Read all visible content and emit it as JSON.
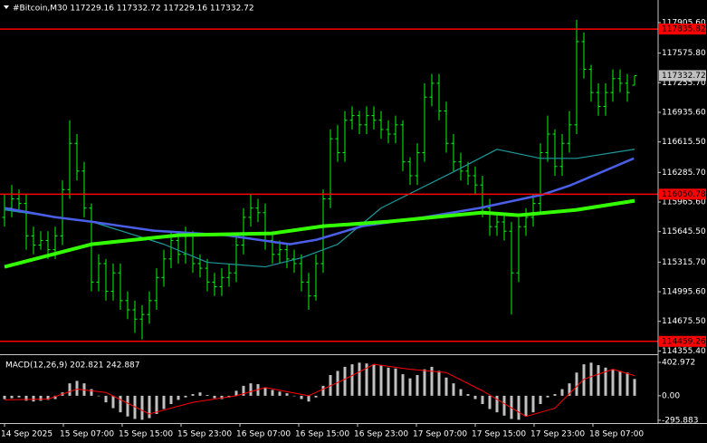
{
  "chart_data": [
    {
      "type": "ohlc",
      "title": "#Bitcoin,M30  117229.16 117332.72 117229.16 117332.72",
      "color": "#00ff00",
      "open": [
        115800,
        115900,
        116000,
        115950,
        115600,
        115500,
        115550,
        115450,
        115600,
        116100,
        116600,
        116300,
        115900,
        115100,
        115300,
        115000,
        115200,
        114900,
        114800,
        114700,
        114750,
        114900,
        115150,
        115350,
        115550,
        115400,
        115600,
        115300,
        115250,
        115100,
        115050,
        115150,
        115200,
        115500,
        115800,
        115900,
        115850,
        115550,
        115400,
        115450,
        115350,
        115300,
        115100,
        114950,
        115300,
        116000,
        116650,
        116500,
        116850,
        116900,
        116800,
        116900,
        116850,
        116750,
        116700,
        116800,
        116400,
        116250,
        116500,
        117100,
        117250,
        116950,
        116600,
        116400,
        116300,
        116250,
        116150,
        115900,
        115700,
        115750,
        115650,
        115200,
        115700,
        115800,
        115950,
        116500,
        116700,
        116350,
        116600,
        116800,
        117700,
        117400,
        117150,
        117000,
        117150,
        117300,
        117250,
        117229.16
      ],
      "high": [
        116050,
        116150,
        116100,
        116050,
        115700,
        115650,
        115650,
        115700,
        116200,
        116850,
        116700,
        116400,
        115950,
        115400,
        115350,
        115300,
        115300,
        115000,
        114900,
        114850,
        115000,
        115250,
        115450,
        115650,
        115650,
        115700,
        115650,
        115400,
        115350,
        115200,
        115250,
        115300,
        115600,
        115900,
        116050,
        116000,
        115950,
        115650,
        115550,
        115500,
        115450,
        115400,
        115200,
        115400,
        116100,
        116750,
        116800,
        116950,
        117000,
        116950,
        117000,
        117000,
        116950,
        116850,
        116900,
        116850,
        116450,
        116600,
        117250,
        117350,
        117350,
        117050,
        116700,
        116500,
        116400,
        116350,
        116250,
        116000,
        115850,
        115850,
        115750,
        115800,
        115900,
        116050,
        116600,
        116900,
        116750,
        116700,
        116950,
        117935,
        117800,
        117450,
        117250,
        117250,
        117400,
        117400,
        117350,
        117332.72
      ],
      "low": [
        115700,
        115800,
        115850,
        115450,
        115400,
        115450,
        115350,
        115350,
        115500,
        116000,
        116200,
        115800,
        115000,
        115000,
        114900,
        114900,
        114800,
        114700,
        114550,
        114480,
        114650,
        114800,
        115050,
        115250,
        115300,
        115300,
        115200,
        115150,
        115000,
        114950,
        114950,
        115050,
        115100,
        115400,
        115700,
        115750,
        115450,
        115300,
        115300,
        115250,
        115200,
        115000,
        114800,
        114900,
        115200,
        115900,
        116400,
        116400,
        116750,
        116700,
        116700,
        116750,
        116650,
        116600,
        116600,
        116300,
        116150,
        116150,
        116400,
        117000,
        116850,
        116500,
        116300,
        116200,
        116150,
        116050,
        115800,
        115600,
        115600,
        115550,
        114750,
        115100,
        115600,
        115700,
        115850,
        116400,
        116250,
        116250,
        116500,
        116700,
        117300,
        117050,
        116900,
        116900,
        117050,
        117150,
        117050,
        117229.16
      ],
      "close": [
        115900,
        116000,
        115950,
        115600,
        115500,
        115550,
        115450,
        115600,
        116100,
        116600,
        116300,
        115900,
        115100,
        115300,
        115000,
        115200,
        114900,
        114800,
        114700,
        114750,
        114900,
        115150,
        115350,
        115550,
        115400,
        115600,
        115300,
        115250,
        115100,
        115050,
        115150,
        115200,
        115500,
        115800,
        115900,
        115850,
        115550,
        115400,
        115450,
        115350,
        115300,
        115100,
        114950,
        115300,
        116000,
        116650,
        116500,
        116850,
        116900,
        116800,
        116900,
        116850,
        116750,
        116700,
        116800,
        116400,
        116250,
        116500,
        117100,
        117250,
        116950,
        116600,
        116400,
        116300,
        116250,
        116150,
        115900,
        115700,
        115750,
        115650,
        115200,
        115700,
        115800,
        115950,
        116500,
        116700,
        116350,
        116600,
        116800,
        117700,
        117400,
        117150,
        117000,
        117150,
        117300,
        117250,
        117150,
        117332.72
      ],
      "xlim": [
        -0.625,
        90.25
      ],
      "ylim": [
        114330,
        118150
      ],
      "yticks": [
        {
          "value": 117905.6,
          "label": "117905.60"
        },
        {
          "value": 117575.8,
          "label": "117575.80"
        },
        {
          "value": 117255.7,
          "label": "117255.70"
        },
        {
          "value": 116935.6,
          "label": "116935.60"
        },
        {
          "value": 116615.5,
          "label": "116615.50"
        },
        {
          "value": 116285.7,
          "label": "116285.70"
        },
        {
          "value": 115965.6,
          "label": "115965.60"
        },
        {
          "value": 115645.5,
          "label": "115645.50"
        },
        {
          "value": 115315.7,
          "label": "115315.70"
        },
        {
          "value": 114995.6,
          "label": "114995.60"
        },
        {
          "value": 114675.5,
          "label": "114675.50"
        },
        {
          "value": 114355.4,
          "label": "114355.40"
        }
      ],
      "grid": true,
      "levels": [
        117835.82,
        116050.78,
        114459.26
      ],
      "level_color": "#ff0000",
      "last_price": 117332.72,
      "series": [
        {
          "color": "#1e9a9a",
          "line_width": 1.2,
          "x": [
            0,
            7,
            12,
            22,
            28,
            36,
            41,
            46,
            52,
            62,
            68,
            74,
            79,
            87
          ],
          "values": [
            115881,
            115803,
            115754,
            115509,
            115314,
            115265,
            115363,
            115509,
            115901,
            116292,
            116536,
            116438,
            116438,
            116536
          ]
        },
        {
          "color": "#4a5fe8",
          "line_width": 2.5,
          "x": [
            0,
            6.9,
            11.9,
            20.6,
            30.6,
            39.4,
            43.1,
            49.4,
            58.1,
            65.6,
            74.4,
            78.1,
            86.9
          ],
          "values": [
            115901,
            115803,
            115754,
            115656,
            115607,
            115509,
            115558,
            115705,
            115803,
            115901,
            116048,
            116145,
            116438
          ]
        },
        {
          "color": "#33ff00",
          "line_width": 4,
          "x": [
            0,
            12,
            24,
            37,
            44,
            53,
            66,
            71,
            79,
            87
          ],
          "values": [
            115265,
            115509,
            115607,
            115627,
            115705,
            115754,
            115852,
            115823,
            115881,
            115979
          ]
        }
      ]
    },
    {
      "type": "bar",
      "title": "MACD(12,26,9) 202.821 242.887",
      "color": "#c0c0c0",
      "values": [
        -40,
        -30,
        -20,
        -60,
        -70,
        -60,
        -50,
        -40,
        40,
        150,
        180,
        150,
        80,
        0,
        -80,
        -150,
        -200,
        -250,
        -280,
        -290,
        -270,
        -220,
        -160,
        -100,
        -50,
        -20,
        20,
        40,
        10,
        -30,
        -40,
        -20,
        60,
        120,
        150,
        140,
        100,
        70,
        50,
        30,
        0,
        -40,
        -70,
        -20,
        120,
        250,
        300,
        350,
        380,
        400,
        390,
        380,
        370,
        340,
        330,
        260,
        210,
        250,
        320,
        350,
        300,
        220,
        150,
        80,
        20,
        -40,
        -100,
        -160,
        -200,
        -240,
        -280,
        -290,
        -250,
        -200,
        -100,
        -20,
        20,
        80,
        150,
        280,
        380,
        400,
        370,
        340,
        320,
        300,
        280,
        202.821
      ],
      "xlim": [
        -0.625,
        90.25
      ],
      "ylim": [
        -330,
        480
      ],
      "yticks": [
        402.972,
        {
          "value": 0,
          "label": "0.00"
        },
        -295.883
      ],
      "series": [
        {
          "color": "#ff0000",
          "x": [
            0,
            6,
            10,
            14,
            20,
            26,
            32,
            36,
            42,
            47,
            51,
            56,
            61,
            66,
            72,
            76,
            80,
            84,
            87
          ],
          "values": [
            -50,
            -40,
            80,
            40,
            -220,
            -80,
            0,
            100,
            0,
            200,
            380,
            320,
            280,
            60,
            -250,
            -150,
            200,
            320,
            242.887
          ]
        }
      ],
      "xticks": [
        {
          "value": 0,
          "label": "14 Sep 2025"
        },
        {
          "value": 8.125,
          "label": "15 Sep 07:00"
        },
        {
          "value": 16.25,
          "label": "15 Sep 15:00"
        },
        {
          "value": 24.375,
          "label": "15 Sep 23:00"
        },
        {
          "value": 32.5,
          "label": "16 Sep 07:00"
        },
        {
          "value": 40.625,
          "label": "16 Sep 15:00"
        },
        {
          "value": 48.75,
          "label": "16 Sep 23:00"
        },
        {
          "value": 56.875,
          "label": "17 Sep 07:00"
        },
        {
          "value": 65,
          "label": "17 Sep 15:00"
        },
        {
          "value": 73.125,
          "label": "17 Sep 23:00"
        },
        {
          "value": 81.25,
          "label": "18 Sep 07:00"
        }
      ],
      "grid": true
    }
  ]
}
